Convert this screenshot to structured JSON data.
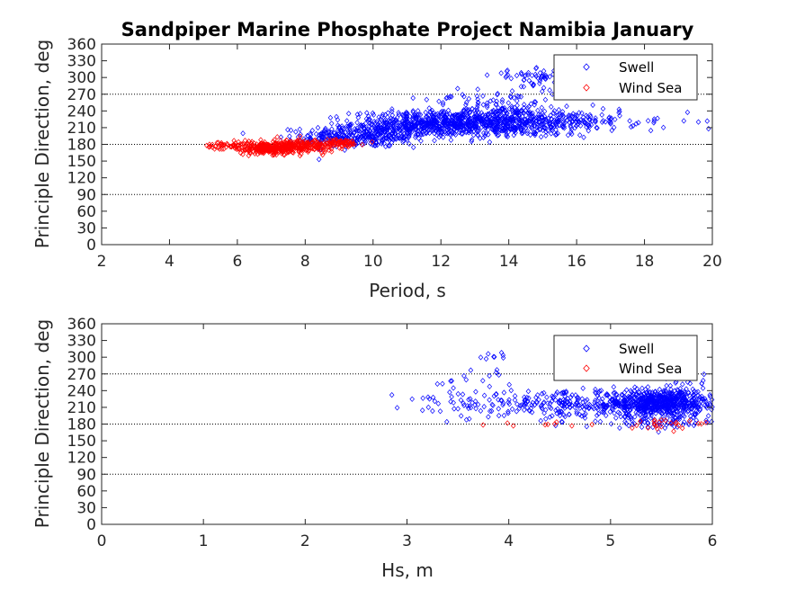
{
  "chart_data": [
    {
      "type": "scatter",
      "title": "Sandpiper Marine Phosphate Project Namibia January",
      "xlabel": "Period, s",
      "ylabel": "Principle Direction, deg",
      "xlim": [
        2,
        20
      ],
      "ylim": [
        0,
        360
      ],
      "xticks": [
        2,
        4,
        6,
        8,
        10,
        12,
        14,
        16,
        18,
        20
      ],
      "yticks": [
        0,
        30,
        60,
        90,
        120,
        150,
        180,
        210,
        240,
        270,
        300,
        330,
        360
      ],
      "reference_lines_y": [
        90,
        180,
        270
      ],
      "grid": false,
      "legend_position": "top-right",
      "marker": "diamond",
      "series": [
        {
          "name": "Swell",
          "color": "#0000ff",
          "clusters": [
            {
              "x": 9.8,
              "y": 195,
              "sx": 0.9,
              "sy": 10,
              "n": 260
            },
            {
              "x": 11.8,
              "y": 217,
              "sx": 1.2,
              "sy": 11,
              "n": 600
            },
            {
              "x": 13.8,
              "y": 222,
              "sx": 0.9,
              "sy": 14,
              "n": 300
            },
            {
              "x": 15.5,
              "y": 222,
              "sx": 0.9,
              "sy": 11,
              "n": 180
            },
            {
              "x": 17.6,
              "y": 222,
              "sx": 1.0,
              "sy": 11,
              "n": 28
            },
            {
              "x": 14.7,
              "y": 300,
              "sx": 0.6,
              "sy": 7,
              "n": 50
            },
            {
              "x": 13.6,
              "y": 262,
              "sx": 1.0,
              "sy": 12,
              "n": 60
            },
            {
              "x": 8.6,
              "y": 190,
              "sx": 0.6,
              "sy": 9,
              "n": 60
            }
          ]
        },
        {
          "name": "Wind Sea",
          "color": "#ff0000",
          "clusters": [
            {
              "x": 5.7,
              "y": 177,
              "sx": 0.35,
              "sy": 4,
              "n": 50
            },
            {
              "x": 6.8,
              "y": 173,
              "sx": 0.4,
              "sy": 5,
              "n": 200
            },
            {
              "x": 7.8,
              "y": 177,
              "sx": 0.55,
              "sy": 6,
              "n": 260
            },
            {
              "x": 9.0,
              "y": 182,
              "sx": 0.35,
              "sy": 4,
              "n": 50
            }
          ]
        }
      ]
    },
    {
      "type": "scatter",
      "title": "",
      "xlabel": "Hs, m",
      "ylabel": "Principle Direction, deg",
      "xlim": [
        0,
        6
      ],
      "ylim": [
        0,
        360
      ],
      "xticks": [
        0,
        1,
        2,
        3,
        4,
        5,
        6
      ],
      "yticks": [
        0,
        30,
        60,
        90,
        120,
        150,
        180,
        210,
        240,
        270,
        300,
        330,
        360
      ],
      "reference_lines_y": [
        90,
        180,
        270
      ],
      "grid": false,
      "legend_position": "top-right",
      "marker": "diamond",
      "series": [
        {
          "name": "Swell",
          "color": "#0000ff",
          "clusters": [
            {
              "x": 5.5,
              "y": 218,
              "sx": 0.3,
              "sy": 12,
              "n": 700
            },
            {
              "x": 4.6,
              "y": 215,
              "sx": 0.35,
              "sy": 11,
              "n": 170
            },
            {
              "x": 3.9,
              "y": 215,
              "sx": 0.28,
              "sy": 12,
              "n": 60
            },
            {
              "x": 3.3,
              "y": 218,
              "sx": 0.25,
              "sy": 13,
              "n": 20
            },
            {
              "x": 3.85,
              "y": 301,
              "sx": 0.08,
              "sy": 4,
              "n": 8
            },
            {
              "x": 3.7,
              "y": 255,
              "sx": 0.2,
              "sy": 12,
              "n": 14
            },
            {
              "x": 5.8,
              "y": 262,
              "sx": 0.15,
              "sy": 8,
              "n": 12
            },
            {
              "x": 5.4,
              "y": 183,
              "sx": 0.35,
              "sy": 5,
              "n": 60
            }
          ]
        },
        {
          "name": "Wind Sea",
          "color": "#ff0000",
          "clusters": [
            {
              "x": 5.5,
              "y": 180,
              "sx": 0.3,
              "sy": 5,
              "n": 25
            },
            {
              "x": 4.2,
              "y": 180,
              "sx": 0.3,
              "sy": 4,
              "n": 8
            }
          ]
        }
      ]
    }
  ]
}
